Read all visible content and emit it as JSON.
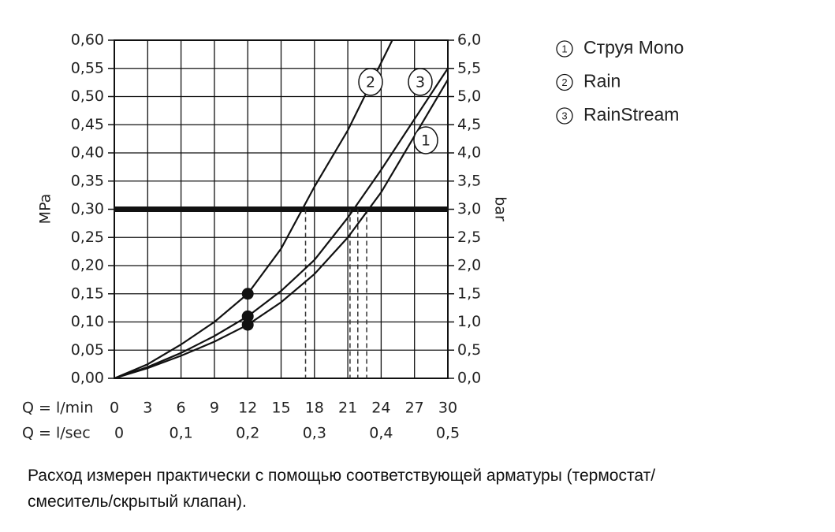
{
  "chart_data": {
    "type": "line",
    "ylabel": "MPa",
    "y2label": "bar",
    "xlabel": "Q = l/min",
    "x2label": "Q = l/sec",
    "xlim": [
      0,
      30
    ],
    "xticks": [
      0,
      3,
      6,
      9,
      12,
      15,
      18,
      21,
      24,
      27,
      30
    ],
    "x2lim": [
      0,
      0.5
    ],
    "x2ticks": [
      {
        "value": 0,
        "label": "0"
      },
      {
        "value": 0.1,
        "label": "0,1"
      },
      {
        "value": 0.2,
        "label": "0,2"
      },
      {
        "value": 0.3,
        "label": "0,3"
      },
      {
        "value": 0.4,
        "label": "0,4"
      },
      {
        "value": 0.5,
        "label": "0,5"
      }
    ],
    "ylim": [
      0,
      0.6
    ],
    "yticks": [
      {
        "value": 0,
        "label": "0,00"
      },
      {
        "value": 0.05,
        "label": "0,05"
      },
      {
        "value": 0.1,
        "label": "0,10"
      },
      {
        "value": 0.15,
        "label": "0,15"
      },
      {
        "value": 0.2,
        "label": "0,20"
      },
      {
        "value": 0.25,
        "label": "0,25"
      },
      {
        "value": 0.3,
        "label": "0,30"
      },
      {
        "value": 0.35,
        "label": "0,35"
      },
      {
        "value": 0.4,
        "label": "0,40"
      },
      {
        "value": 0.45,
        "label": "0,45"
      },
      {
        "value": 0.5,
        "label": "0,50"
      },
      {
        "value": 0.55,
        "label": "0,55"
      },
      {
        "value": 0.6,
        "label": "0,60"
      }
    ],
    "y2lim": [
      0,
      6
    ],
    "y2ticks": [
      {
        "value": 0,
        "label": "0,0"
      },
      {
        "value": 0.5,
        "label": "0,5"
      },
      {
        "value": 1,
        "label": "1,0"
      },
      {
        "value": 1.5,
        "label": "1,5"
      },
      {
        "value": 2,
        "label": "2,0"
      },
      {
        "value": 2.5,
        "label": "2,5"
      },
      {
        "value": 3,
        "label": "3,0"
      },
      {
        "value": 3.5,
        "label": "3,5"
      },
      {
        "value": 4,
        "label": "4,0"
      },
      {
        "value": 4.5,
        "label": "4,5"
      },
      {
        "value": 5,
        "label": "5,0"
      },
      {
        "value": 5.5,
        "label": "5,5"
      },
      {
        "value": 6,
        "label": "6,0"
      }
    ],
    "grid": true,
    "reference_line": 0.3,
    "dashed_x": [
      17.2,
      21.2,
      21.9,
      22.7
    ],
    "series": [
      {
        "name": "Струя Mono",
        "badge": "1",
        "color": "#111111",
        "x": [
          0,
          3,
          6,
          9,
          12,
          15,
          18,
          21,
          24,
          27,
          30
        ],
        "values": [
          0,
          0.018,
          0.04,
          0.065,
          0.095,
          0.135,
          0.185,
          0.25,
          0.33,
          0.43,
          0.53
        ],
        "point": {
          "x": 12,
          "y": 0.095
        }
      },
      {
        "name": "Rain",
        "badge": "2",
        "color": "#111111",
        "x": [
          0,
          3,
          6,
          9,
          12,
          15,
          18,
          21,
          24,
          25
        ],
        "values": [
          0,
          0.025,
          0.06,
          0.1,
          0.15,
          0.23,
          0.34,
          0.44,
          0.56,
          0.6
        ],
        "point": {
          "x": 12,
          "y": 0.15
        }
      },
      {
        "name": "RainStream",
        "badge": "3",
        "color": "#111111",
        "x": [
          0,
          3,
          6,
          9,
          12,
          15,
          18,
          21,
          24,
          27,
          30
        ],
        "values": [
          0,
          0.02,
          0.045,
          0.075,
          0.11,
          0.155,
          0.21,
          0.285,
          0.37,
          0.46,
          0.55
        ],
        "point": {
          "x": 12,
          "y": 0.11
        }
      }
    ]
  },
  "note_lines": [
    "Расход измерен практически с помощью соответствующей арматуры (термостат/",
    "смеситель/скрытый клапан)."
  ]
}
